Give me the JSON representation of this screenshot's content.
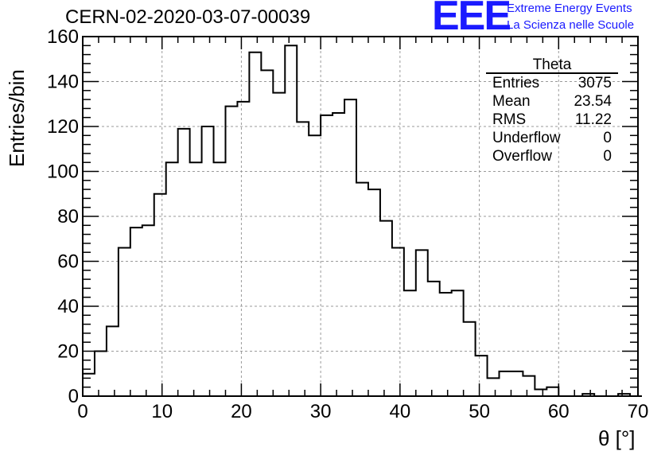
{
  "header": {
    "title": "CERN-02-2020-03-07-00039",
    "logo_text": "EEE",
    "tagline_1": "Extreme Energy Events",
    "tagline_2": "La Scienza nelle Scuole"
  },
  "colors": {
    "brand": "#1a1aff",
    "line": "#000000",
    "grid": "#9a9a9a"
  },
  "stats_box": {
    "title": "Theta",
    "rows": [
      {
        "label": "Entries",
        "value": "3075"
      },
      {
        "label": "Mean",
        "value": "23.54"
      },
      {
        "label": "RMS",
        "value": "11.22"
      },
      {
        "label": "Underflow",
        "value": "0"
      },
      {
        "label": "Overflow",
        "value": "0"
      }
    ]
  },
  "chart_data": {
    "type": "bar",
    "histogram": true,
    "xlabel": "θ [°]",
    "ylabel": "Entries/bin",
    "xlim": [
      0,
      70
    ],
    "ylim": [
      0,
      160
    ],
    "grid": true,
    "bin_width": 1.5,
    "bin_edges_start": 0,
    "x_ticks": [
      0,
      10,
      20,
      30,
      40,
      50,
      60,
      70
    ],
    "y_ticks": [
      0,
      20,
      40,
      60,
      80,
      100,
      120,
      140,
      160
    ],
    "values": [
      10,
      20,
      31,
      66,
      75,
      76,
      90,
      104,
      119,
      104,
      120,
      104,
      129,
      131,
      153,
      145,
      135,
      156,
      122,
      116,
      125,
      126,
      132,
      95,
      92,
      78,
      66,
      47,
      65,
      51,
      46,
      47,
      33,
      18,
      8,
      11,
      11,
      9,
      3,
      4,
      0,
      0,
      1,
      0,
      0,
      1,
      0
    ]
  }
}
